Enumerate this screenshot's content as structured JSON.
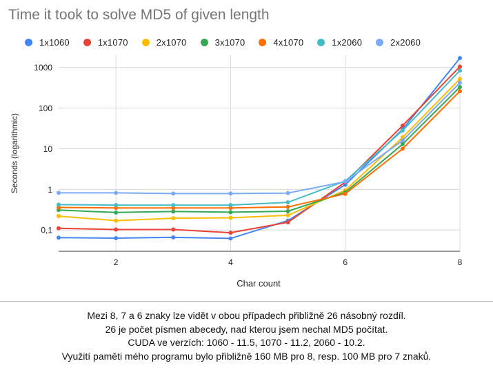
{
  "chart_data": {
    "type": "line",
    "title": "Time it took to solve MD5 of given length",
    "xlabel": "Char count",
    "ylabel": "Seconds (logarithmic)",
    "y_scale": "log",
    "xlim": [
      1,
      8
    ],
    "ylim": [
      0.03,
      2000
    ],
    "x_ticks": [
      2,
      4,
      6,
      8
    ],
    "y_ticks": [
      {
        "value": 0.1,
        "label": "0,1"
      },
      {
        "value": 1,
        "label": "1"
      },
      {
        "value": 10,
        "label": "10"
      },
      {
        "value": 100,
        "label": "100"
      },
      {
        "value": 1000,
        "label": "1000"
      }
    ],
    "grid": true,
    "legend_position": "top",
    "x": [
      1,
      2,
      3,
      4,
      5,
      6,
      7,
      8
    ],
    "series": [
      {
        "name": "1x1060",
        "color": "#4285f4",
        "values": [
          0.065,
          0.063,
          0.066,
          0.062,
          0.17,
          1.3,
          30,
          1700
        ]
      },
      {
        "name": "1x1070",
        "color": "#ea4335",
        "values": [
          0.11,
          0.103,
          0.103,
          0.086,
          0.155,
          1.5,
          37,
          1050
        ]
      },
      {
        "name": "2x1070",
        "color": "#fbbc04",
        "values": [
          0.22,
          0.17,
          0.195,
          0.2,
          0.23,
          0.95,
          19,
          520
        ]
      },
      {
        "name": "3x1070",
        "color": "#34a853",
        "values": [
          0.31,
          0.27,
          0.285,
          0.275,
          0.29,
          0.85,
          13,
          330
        ]
      },
      {
        "name": "4x1070",
        "color": "#ff6d01",
        "values": [
          0.36,
          0.35,
          0.35,
          0.35,
          0.37,
          0.78,
          10,
          260
        ]
      },
      {
        "name": "1x2060",
        "color": "#46bdc6",
        "values": [
          0.42,
          0.41,
          0.41,
          0.41,
          0.48,
          1.6,
          28,
          840
        ]
      },
      {
        "name": "2x2060",
        "color": "#7baaf7",
        "values": [
          0.82,
          0.82,
          0.79,
          0.79,
          0.81,
          1.55,
          16,
          420
        ]
      }
    ]
  },
  "notes": [
    "Mezi 8, 7 a 6 znaky lze vidět v obou případech přibližně 26 násobný rozdíl.",
    "26 je počet písmen abecedy, nad kterou jsem nechal MD5 počítat.",
    "CUDA ve verzích: 1060 - 11.5, 1070 - 11.2, 2060 - 10.2.",
    "Využití paměti mého programu bylo přibližně 160 MB pro 8, resp. 100 MB pro 7 znaků."
  ]
}
